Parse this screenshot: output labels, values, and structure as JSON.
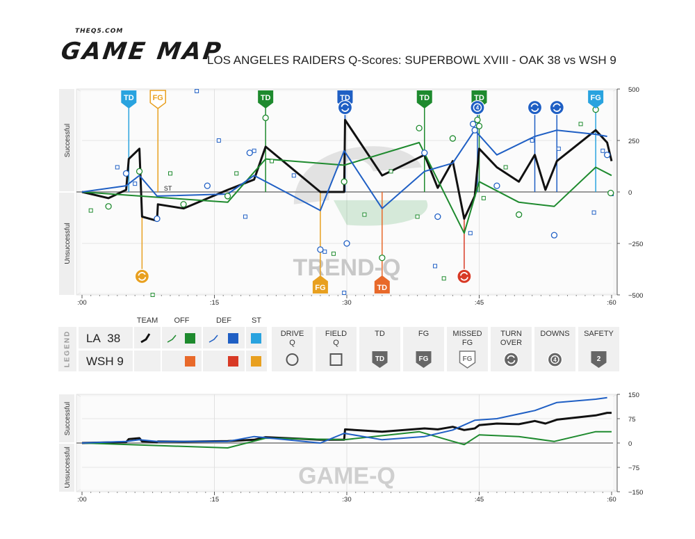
{
  "brand": {
    "small": "THEQ5.COM",
    "big": "GAME MAP"
  },
  "title": "LOS ANGELES RAIDERS Q-Scores: SUPERBOWL XVIII - OAK 38 vs WSH 9",
  "colors": {
    "team": "#111111",
    "off_la": "#1e8a2e",
    "def_la": "#1f5fc4",
    "st_la": "#29a3df",
    "off_wsh": "#e8692a",
    "def_wsh": "#d83a26",
    "st_wsh": "#e8a020",
    "td_green": "#1e8a2e",
    "td_blue": "#1f5fc4",
    "td_lightblue": "#29a3df",
    "fg_gold": "#e8a020",
    "red": "#d83a26",
    "orange": "#e8692a"
  },
  "legend": {
    "side_label": "LEGEND",
    "teams": [
      {
        "abbr": "LA",
        "score": "38"
      },
      {
        "abbr": "WSH",
        "score": "9"
      }
    ],
    "col_headers": {
      "team": "TEAM",
      "off": "OFF",
      "def": "DEF",
      "st": "ST"
    },
    "icons": [
      {
        "label1": "DRIVE",
        "label2": "Q",
        "icon": "drive-circle-icon"
      },
      {
        "label1": "FIELD",
        "label2": "Q",
        "icon": "field-square-icon"
      },
      {
        "label1": "TD",
        "label2": "",
        "icon": "td-badge-icon",
        "badge": "TD"
      },
      {
        "label1": "FG",
        "label2": "",
        "icon": "fg-badge-icon",
        "badge": "FG"
      },
      {
        "label1": "MISSED",
        "label2": "FG",
        "icon": "missed-fg-badge-icon",
        "badge": "FG"
      },
      {
        "label1": "TURN",
        "label2": "OVER",
        "icon": "turnover-icon"
      },
      {
        "label1": "DOWNS",
        "label2": "",
        "icon": "downs-icon",
        "badge": "4"
      },
      {
        "label1": "SAFETY",
        "label2": "",
        "icon": "safety-badge-icon",
        "badge": "2"
      }
    ]
  },
  "chart_data": [
    {
      "type": "line",
      "title": "",
      "watermark": "TREND-Q",
      "ylabel_top": "Successful",
      "ylabel_bottom": "Unsuccessful",
      "ylim": [
        -500,
        500
      ],
      "yticks": [
        500,
        250,
        0,
        -250,
        -500
      ],
      "xlim": [
        0,
        60
      ],
      "xticks": [
        ":00",
        ":15",
        ":30",
        ":45",
        ":60"
      ],
      "st_label": "ST",
      "series": [
        {
          "role": "team",
          "x": [
            0,
            3,
            5,
            5.3,
            6.5,
            6.8,
            8.5,
            8.6,
            11.5,
            16.5,
            19.5,
            20.8,
            27,
            29.7,
            29.8,
            34,
            38.8,
            40.3,
            42,
            43.3,
            44.5,
            45,
            47,
            49.5,
            51.3,
            52.5,
            53.8,
            58.2,
            59.5,
            60
          ],
          "y": [
            0,
            -30,
            10,
            160,
            210,
            -120,
            -140,
            -60,
            -80,
            10,
            60,
            220,
            0,
            0,
            350,
            80,
            180,
            20,
            150,
            -130,
            -20,
            210,
            120,
            50,
            180,
            10,
            150,
            300,
            240,
            150
          ]
        },
        {
          "role": "off",
          "x": [
            0,
            16.5,
            20.8,
            29.7,
            38.2,
            43.3,
            45,
            49.5,
            53.5,
            58.2,
            60
          ],
          "y": [
            0,
            -50,
            160,
            130,
            240,
            -200,
            50,
            -50,
            -70,
            120,
            80
          ]
        },
        {
          "role": "def",
          "x": [
            0,
            5,
            6.5,
            8.5,
            16.5,
            19.5,
            27,
            29.7,
            34,
            38.8,
            42,
            44.5,
            47,
            51.3,
            53.8,
            58.2,
            59.5
          ],
          "y": [
            0,
            30,
            80,
            -20,
            -10,
            80,
            -90,
            200,
            -80,
            100,
            140,
            300,
            180,
            270,
            300,
            280,
            270
          ]
        }
      ],
      "drive_q": [
        [
          3,
          -70
        ],
        [
          5,
          90
        ],
        [
          6.5,
          100
        ],
        [
          8.5,
          -130
        ],
        [
          11.5,
          -60
        ],
        [
          14.2,
          30
        ],
        [
          16.5,
          -20
        ],
        [
          19,
          190
        ],
        [
          20.8,
          360
        ],
        [
          27,
          -280
        ],
        [
          29.7,
          50
        ],
        [
          30,
          -250
        ],
        [
          34,
          -320
        ],
        [
          38.8,
          190
        ],
        [
          38.2,
          310
        ],
        [
          40.3,
          -120
        ],
        [
          42,
          260
        ],
        [
          44.3,
          330
        ],
        [
          44.8,
          350
        ],
        [
          44.5,
          300
        ],
        [
          45,
          320
        ],
        [
          47,
          30
        ],
        [
          49.5,
          -110
        ],
        [
          53.5,
          -210
        ],
        [
          58.2,
          400
        ],
        [
          59.5,
          180
        ],
        [
          59.9,
          -5
        ]
      ],
      "field_q": [
        [
          1,
          -90
        ],
        [
          4,
          120
        ],
        [
          6,
          40
        ],
        [
          10,
          90
        ],
        [
          13,
          490
        ],
        [
          15.5,
          250
        ],
        [
          17.5,
          90
        ],
        [
          18.5,
          -120
        ],
        [
          19.5,
          200
        ],
        [
          21.5,
          150
        ],
        [
          24,
          80
        ],
        [
          27.5,
          -290
        ],
        [
          28.5,
          -300
        ],
        [
          29.7,
          -490
        ],
        [
          32,
          -110
        ],
        [
          35,
          100
        ],
        [
          38,
          -120
        ],
        [
          40,
          -360
        ],
        [
          41,
          -420
        ],
        [
          44,
          -200
        ],
        [
          45.5,
          -30
        ],
        [
          48,
          120
        ],
        [
          51,
          250
        ],
        [
          54,
          210
        ],
        [
          56.5,
          330
        ],
        [
          58,
          -100
        ],
        [
          59,
          200
        ],
        [
          60,
          -10
        ],
        [
          8,
          -500
        ]
      ],
      "events": [
        {
          "type": "TD",
          "team": "LA",
          "x": 5.3,
          "color": "td_lightblue"
        },
        {
          "type": "FG",
          "team": "LA",
          "x": 8.6,
          "color": "fg_gold",
          "outline": true
        },
        {
          "type": "TD",
          "team": "LA",
          "x": 20.8,
          "color": "td_green"
        },
        {
          "type": "TD",
          "team": "LA",
          "x": 29.8,
          "color": "td_blue"
        },
        {
          "type": "TD",
          "team": "LA",
          "x": 38.8,
          "color": "td_green"
        },
        {
          "type": "TD",
          "team": "LA",
          "x": 45,
          "color": "td_green"
        },
        {
          "type": "FG",
          "team": "LA",
          "x": 58.2,
          "color": "td_lightblue"
        },
        {
          "type": "FG",
          "team": "WSH",
          "x": 27,
          "color": "fg_gold"
        },
        {
          "type": "TD",
          "team": "WSH",
          "x": 34,
          "color": "orange"
        }
      ],
      "turnovers": [
        {
          "team": "LA",
          "x": 29.8,
          "color": "td_blue",
          "badge": ""
        },
        {
          "team": "LA",
          "x": 44.8,
          "color": "td_blue",
          "badge": "4"
        },
        {
          "team": "LA",
          "x": 51.3,
          "color": "td_blue",
          "badge": ""
        },
        {
          "team": "LA",
          "x": 53.8,
          "color": "td_blue",
          "badge": ""
        },
        {
          "team": "WSH",
          "x": 6.8,
          "color": "fg_gold",
          "badge": ""
        },
        {
          "team": "WSH",
          "x": 43.3,
          "color": "red",
          "badge": ""
        }
      ]
    },
    {
      "type": "line",
      "title": "",
      "watermark": "GAME-Q",
      "ylabel_top": "Successful",
      "ylabel_bottom": "Unsuccessful",
      "ylim": [
        -150,
        150
      ],
      "yticks": [
        150,
        75,
        0,
        -75,
        -150
      ],
      "xlim": [
        0,
        60
      ],
      "xticks": [
        ":00",
        ":15",
        ":30",
        ":45",
        ":60"
      ],
      "series": [
        {
          "role": "team",
          "x": [
            0,
            5,
            5.3,
            6.5,
            6.8,
            8.5,
            8.6,
            11.5,
            16.5,
            19.5,
            20.8,
            27,
            29.7,
            29.8,
            34,
            38.8,
            40.3,
            42,
            43.3,
            44.5,
            45,
            47,
            49.5,
            51.3,
            52.5,
            53.8,
            58.2,
            59.5,
            60
          ],
          "y": [
            0,
            3,
            12,
            15,
            5,
            3,
            5,
            4,
            6,
            10,
            18,
            10,
            10,
            42,
            35,
            45,
            42,
            50,
            40,
            45,
            55,
            60,
            58,
            68,
            60,
            72,
            85,
            93,
            93
          ]
        },
        {
          "role": "off",
          "x": [
            0,
            16.5,
            20.8,
            29.7,
            38.2,
            43.3,
            45,
            49.5,
            53.5,
            58.2,
            60
          ],
          "y": [
            0,
            -15,
            15,
            10,
            35,
            -5,
            25,
            20,
            5,
            35,
            35
          ]
        },
        {
          "role": "def",
          "x": [
            0,
            5,
            6.5,
            8.5,
            16.5,
            19.5,
            27,
            29.7,
            34,
            38.8,
            42,
            44.5,
            47,
            51.3,
            53.8,
            58.2,
            59.5
          ],
          "y": [
            0,
            5,
            10,
            5,
            5,
            20,
            0,
            30,
            10,
            20,
            40,
            70,
            75,
            100,
            125,
            135,
            140
          ]
        }
      ]
    }
  ]
}
